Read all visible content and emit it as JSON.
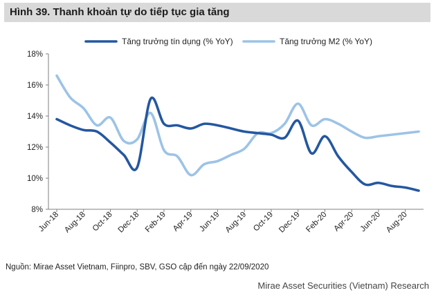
{
  "title": "Hình 39. Thanh khoản tự do tiếp tục gia tăng",
  "source": "Nguồn:  Mirae Asset Vietnam, Fiinpro, SBV, GSO cập đến ngày 22/09/2020",
  "footer": "Mirae Asset Securities (Vietnam) Research",
  "chart_data": {
    "type": "line",
    "title": "Hình 39. Thanh khoản tự do tiếp tục gia tăng",
    "xlabel": "",
    "ylabel": "",
    "ylim": [
      8,
      18
    ],
    "yticks": [
      "8%",
      "10%",
      "12%",
      "14%",
      "16%",
      "18%"
    ],
    "ytick_values": [
      8,
      10,
      12,
      14,
      16,
      18
    ],
    "grid": false,
    "legend_position": "top",
    "categories": [
      "Jun-18",
      "Jul-18",
      "Aug-18",
      "Sep-18",
      "Oct-18",
      "Nov-18",
      "Dec-18",
      "Jan-19",
      "Feb-19",
      "Mar-19",
      "Apr-19",
      "May-19",
      "Jun-19",
      "Jul-19",
      "Aug-19",
      "Sep-19",
      "Oct-19",
      "Nov-19",
      "Dec-19",
      "Jan-20",
      "Feb-20",
      "Mar-20",
      "Apr-20",
      "May-20",
      "Jun-20",
      "Jul-20",
      "Aug-20",
      "Sep-20"
    ],
    "xtick_labels": [
      "Jun-18",
      "Aug-18",
      "Oct-18",
      "Dec-18",
      "Feb-19",
      "Apr-19",
      "Jun-19",
      "Aug-19",
      "Oct-19",
      "Dec-19",
      "Feb-20",
      "Apr-20",
      "Jun-20",
      "Aug-20"
    ],
    "series": [
      {
        "name": "Tăng trưởng tín dụng (% YoY)",
        "color": "#2457a0",
        "values": [
          13.8,
          13.4,
          13.1,
          13.0,
          12.3,
          11.5,
          10.7,
          15.1,
          13.5,
          13.4,
          13.2,
          13.5,
          13.4,
          13.2,
          13.0,
          12.9,
          12.8,
          12.6,
          13.7,
          11.6,
          12.7,
          11.4,
          10.4,
          9.6,
          9.7,
          9.5,
          9.4,
          9.2
        ]
      },
      {
        "name": "Tăng trưởng M2 (% YoY)",
        "color": "#9cc3e6",
        "values": [
          16.6,
          15.2,
          14.5,
          13.4,
          13.9,
          12.4,
          12.5,
          14.2,
          11.8,
          11.4,
          10.2,
          10.9,
          11.1,
          11.5,
          11.9,
          12.9,
          12.9,
          13.5,
          14.8,
          13.4,
          13.8,
          13.5,
          13.0,
          12.6,
          12.7,
          12.8,
          12.9,
          13.0
        ]
      }
    ]
  }
}
